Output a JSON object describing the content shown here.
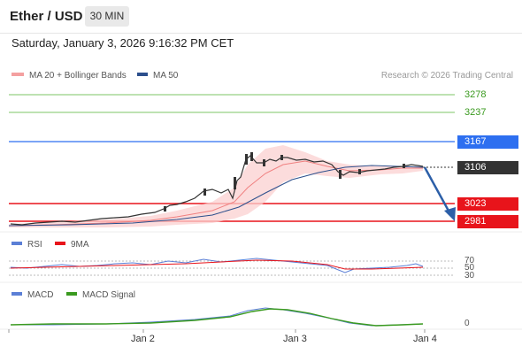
{
  "header": {
    "title": "Ether / USD",
    "timeframe": "30 MIN"
  },
  "datetime": "Saturday, January 3, 2026 9:16:32 PM CET",
  "legend": {
    "bollinger": {
      "label": "MA 20 + Bollinger Bands",
      "color": "#f08080"
    },
    "ma50": {
      "label": "MA 50",
      "color": "#2c4f8c"
    },
    "rsi": {
      "label": "RSI",
      "color": "#5b7fd6"
    },
    "rsi_ma": {
      "label": "9MA",
      "color": "#e8141b"
    },
    "macd": {
      "label": "MACD",
      "color": "#5b7fd6"
    },
    "macd_signal": {
      "label": "MACD Signal",
      "color": "#3a9a1f"
    }
  },
  "research": "Research © 2026 Trading Central",
  "levels": {
    "r2": {
      "value": "3278",
      "color": "#3a9a1f"
    },
    "r1": {
      "value": "3237",
      "color": "#3a9a1f"
    },
    "pivot": {
      "value": "3167",
      "color": "#2d6ff0"
    },
    "last": {
      "value": "3106",
      "color": "#333333"
    },
    "s1": {
      "value": "3023",
      "color": "#e8141b"
    },
    "s2": {
      "value": "2981",
      "color": "#e8141b"
    }
  },
  "rsi_levels": {
    "upper": "70",
    "mid": "50",
    "lower": "30"
  },
  "macd_zero": "0",
  "x_labels": {
    "a": "Jan 2",
    "b": "Jan 3",
    "c": "Jan 4"
  }
}
